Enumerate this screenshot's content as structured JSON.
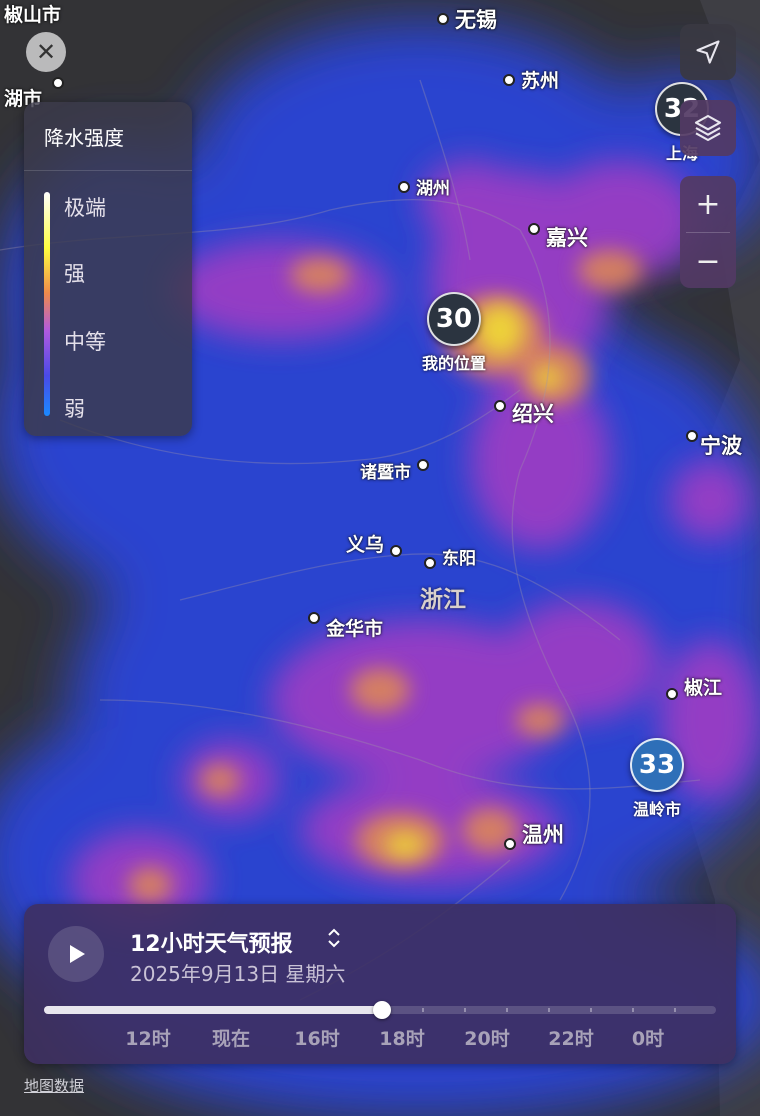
{
  "map": {
    "cities": [
      {
        "id": "wuxi",
        "name": "无锡",
        "size": "big"
      },
      {
        "id": "suzhou",
        "name": "苏州",
        "size": "mid"
      },
      {
        "id": "huzhou",
        "name": "湖州",
        "size": "small"
      },
      {
        "id": "jiaxing",
        "name": "嘉兴",
        "size": "big"
      },
      {
        "id": "shaoxing",
        "name": "绍兴",
        "size": "big"
      },
      {
        "id": "ningbo",
        "name": "宁波",
        "size": "big"
      },
      {
        "id": "zhuji",
        "name": "诸暨市",
        "size": "small"
      },
      {
        "id": "yiwu",
        "name": "义乌",
        "size": "mid"
      },
      {
        "id": "dongyang",
        "name": "东阳",
        "size": "small"
      },
      {
        "id": "jinhua",
        "name": "金华市",
        "size": "mid"
      },
      {
        "id": "jiaojiang",
        "name": "椒江",
        "size": "mid"
      },
      {
        "id": "wenzhou",
        "name": "温州",
        "size": "big"
      },
      {
        "id": "huzhoushi",
        "name": "湖市",
        "size": "mid"
      },
      {
        "id": "ijiaoshan",
        "name": "椒山市",
        "size": "mid"
      }
    ],
    "province": "浙江",
    "pins": [
      {
        "id": "my-location",
        "temp": "30",
        "label": "我的位置",
        "color": "#2b3440"
      },
      {
        "id": "wenling",
        "temp": "33",
        "label": "温岭市",
        "color": "#2e6fb8"
      },
      {
        "id": "shanghai",
        "temp": "32",
        "label": "上海",
        "color": "#2b3440"
      }
    ]
  },
  "legend": {
    "title": "降水强度",
    "items": [
      "极端",
      "强",
      "中等",
      "弱"
    ]
  },
  "controls": {
    "close_icon": "close-icon",
    "location_icon": "location-arrow-icon",
    "layers_icon": "layers-icon",
    "zoom_in": "+",
    "zoom_out": "−"
  },
  "timeline": {
    "title": "12小时天气预报",
    "updown": "⌃⌄",
    "date": "2025年9月13日 星期六",
    "progress": 0.5,
    "labels": [
      "12时",
      "现在",
      "16时",
      "18时",
      "20时",
      "22时",
      "0时"
    ]
  },
  "attribution": "地图数据"
}
